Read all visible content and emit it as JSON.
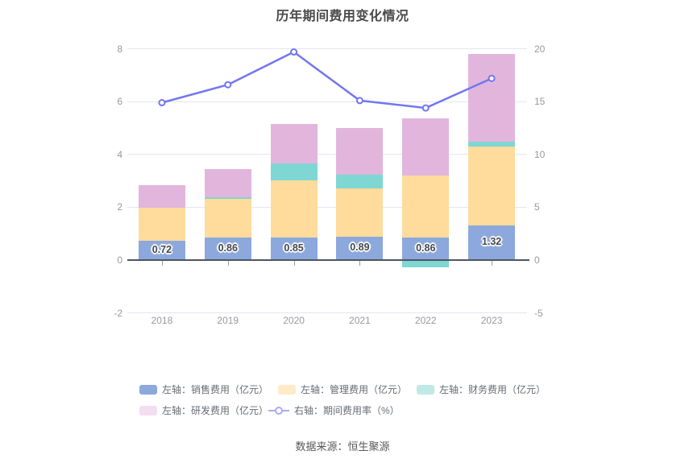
{
  "chart_data": {
    "type": "bar-line-combo",
    "title": "历年期间费用变化情况",
    "source": "数据来源：恒生聚源",
    "categories": [
      "2018",
      "2019",
      "2020",
      "2021",
      "2022",
      "2023"
    ],
    "bar_series": [
      {
        "name": "左轴：销售费用（亿元）",
        "color": "#8CA8DC",
        "legend_color": "#8CA8DC",
        "values": [
          0.72,
          0.86,
          0.85,
          0.89,
          0.86,
          1.32
        ],
        "show_labels": true
      },
      {
        "name": "左轴：管理费用（亿元）",
        "color": "#FFDB9C",
        "legend_color": "#FFEBC8",
        "values": [
          1.26,
          1.45,
          2.16,
          1.81,
          2.35,
          2.99
        ]
      },
      {
        "name": "左轴：财务费用（亿元）",
        "color": "#7ED7D3",
        "legend_color": "#BFE9E6",
        "values": [
          0,
          0.06,
          0.64,
          0.52,
          -0.27,
          0.17
        ]
      },
      {
        "name": "左轴：研发费用（亿元）",
        "color": "#E2B5DD",
        "legend_color": "#F2DEF1",
        "values": [
          0.87,
          1.06,
          1.49,
          1.78,
          2.16,
          3.34
        ]
      }
    ],
    "line_series": {
      "name": "右轴：期间费用率（%）",
      "color": "#7276F2",
      "legend_color": "#A9ABF5",
      "values": [
        14.9,
        16.6,
        19.7,
        15.1,
        14.4,
        17.2
      ]
    },
    "bar_value_labels": [
      "0.72",
      "0.86",
      "0.85",
      "0.89",
      "0.86",
      "1.32"
    ],
    "left_axis": {
      "min": -2,
      "max": 8,
      "interval": 2,
      "ticks": [
        8,
        6,
        4,
        2,
        0,
        -2
      ]
    },
    "right_axis": {
      "min": -5,
      "max": 20,
      "interval": 5,
      "ticks": [
        20,
        15,
        10,
        5,
        0,
        -5
      ]
    },
    "legend_position": "bottom",
    "grid": true
  },
  "colors": {
    "title": "#4A4A4A",
    "axis_label": "#999999",
    "grid_line": "#E2E6F2",
    "zero_line": "#4E565F",
    "legend_text": "#666C74",
    "bar_label": "#44474D",
    "source_text": "#595959",
    "background": "#FFFFFF"
  }
}
